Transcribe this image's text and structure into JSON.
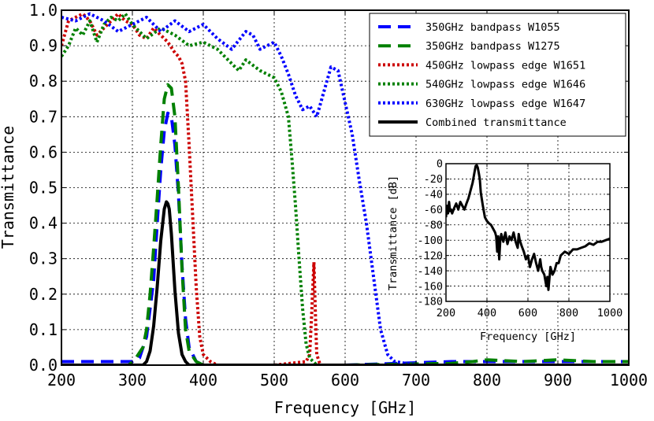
{
  "chart_data": [
    {
      "type": "line",
      "xlabel": "Frequency [GHz]",
      "ylabel": "Transmittance",
      "xlim": [
        200,
        1000
      ],
      "ylim": [
        0,
        1.0
      ],
      "grid": true,
      "legend_position": "top-right",
      "xticks": [
        "200",
        "300",
        "400",
        "500",
        "600",
        "700",
        "800",
        "900",
        "1000"
      ],
      "yticks": [
        "0.0",
        "0.1",
        "0.2",
        "0.3",
        "0.4",
        "0.5",
        "0.6",
        "0.7",
        "0.8",
        "0.9",
        "1.0"
      ],
      "series": [
        {
          "name": "350GHz bandpass W1055",
          "color": "#0000ff",
          "style": "dashed",
          "x": [
            200,
            250,
            300,
            310,
            320,
            330,
            335,
            340,
            345,
            350,
            355,
            360,
            365,
            370,
            375,
            380,
            390,
            400,
            600,
            750,
            800,
            1000
          ],
          "y": [
            0.01,
            0.01,
            0.01,
            0.02,
            0.08,
            0.24,
            0.4,
            0.55,
            0.66,
            0.71,
            0.7,
            0.62,
            0.48,
            0.28,
            0.13,
            0.05,
            0.01,
            0.0,
            0.0,
            0.01,
            0.01,
            0.01
          ]
        },
        {
          "name": "350GHz bandpass W1275",
          "color": "#008000",
          "style": "dashed",
          "x": [
            200,
            250,
            295,
            305,
            315,
            320,
            325,
            330,
            335,
            340,
            345,
            350,
            355,
            360,
            365,
            370,
            375,
            380,
            390,
            400,
            600,
            750,
            780,
            800,
            850,
            900,
            950,
            1000
          ],
          "y": [
            0.0,
            0.0,
            0.0,
            0.02,
            0.05,
            0.1,
            0.2,
            0.33,
            0.47,
            0.62,
            0.75,
            0.79,
            0.78,
            0.7,
            0.5,
            0.27,
            0.1,
            0.04,
            0.01,
            0.0,
            0.0,
            0.005,
            0.01,
            0.015,
            0.01,
            0.015,
            0.01,
            0.01
          ]
        },
        {
          "name": "450GHz lowpass edge W1651",
          "color": "#cc0000",
          "style": "dotted",
          "x": [
            200,
            210,
            220,
            230,
            240,
            250,
            260,
            270,
            280,
            290,
            300,
            310,
            320,
            330,
            340,
            350,
            360,
            365,
            370,
            375,
            380,
            385,
            390,
            395,
            400,
            410,
            420,
            450,
            500,
            545,
            550,
            553,
            556,
            558,
            560,
            565,
            600
          ],
          "y": [
            0.9,
            0.97,
            0.98,
            0.99,
            0.97,
            0.93,
            0.95,
            0.97,
            0.99,
            0.97,
            0.96,
            0.93,
            0.92,
            0.95,
            0.93,
            0.91,
            0.88,
            0.87,
            0.85,
            0.8,
            0.62,
            0.42,
            0.22,
            0.08,
            0.03,
            0.01,
            0.0,
            0.0,
            0.0,
            0.01,
            0.03,
            0.15,
            0.29,
            0.15,
            0.03,
            0.0,
            0.0
          ]
        },
        {
          "name": "540GHz lowpass edge W1646",
          "color": "#008000",
          "style": "dotted",
          "x": [
            200,
            210,
            220,
            230,
            240,
            250,
            260,
            270,
            280,
            290,
            300,
            320,
            340,
            360,
            380,
            400,
            420,
            440,
            450,
            460,
            480,
            500,
            510,
            520,
            525,
            530,
            535,
            540,
            545,
            550,
            555,
            560,
            600,
            700,
            800,
            1000
          ],
          "y": [
            0.87,
            0.9,
            0.95,
            0.93,
            0.97,
            0.91,
            0.96,
            0.98,
            0.97,
            0.99,
            0.96,
            0.92,
            0.95,
            0.93,
            0.9,
            0.91,
            0.89,
            0.85,
            0.83,
            0.86,
            0.83,
            0.81,
            0.77,
            0.7,
            0.58,
            0.45,
            0.3,
            0.16,
            0.06,
            0.02,
            0.01,
            0.0,
            0.0,
            0.0,
            0.0,
            0.0
          ]
        },
        {
          "name": "630GHz lowpass edge W1647",
          "color": "#0000ff",
          "style": "dotted",
          "x": [
            200,
            220,
            240,
            260,
            280,
            300,
            320,
            340,
            360,
            380,
            400,
            420,
            440,
            460,
            470,
            480,
            500,
            510,
            520,
            530,
            540,
            550,
            560,
            570,
            580,
            590,
            600,
            610,
            620,
            630,
            640,
            650,
            660,
            670,
            700,
            800,
            1000
          ],
          "y": [
            0.98,
            0.97,
            0.99,
            0.97,
            0.94,
            0.96,
            0.98,
            0.94,
            0.97,
            0.94,
            0.96,
            0.92,
            0.89,
            0.94,
            0.93,
            0.89,
            0.91,
            0.87,
            0.82,
            0.76,
            0.72,
            0.73,
            0.7,
            0.77,
            0.84,
            0.83,
            0.74,
            0.65,
            0.52,
            0.4,
            0.25,
            0.1,
            0.03,
            0.01,
            0.0,
            0.0,
            0.0
          ]
        },
        {
          "name": "Combined transmittance",
          "color": "#000000",
          "style": "solid",
          "x": [
            200,
            300,
            315,
            320,
            325,
            330,
            335,
            340,
            345,
            348,
            350,
            352,
            355,
            360,
            365,
            370,
            375,
            380,
            390,
            1000
          ],
          "y": [
            0.0,
            0.0,
            0.0,
            0.01,
            0.04,
            0.11,
            0.22,
            0.35,
            0.44,
            0.46,
            0.455,
            0.44,
            0.37,
            0.21,
            0.09,
            0.03,
            0.01,
            0.0,
            0.0,
            0.0
          ]
        }
      ]
    },
    {
      "type": "line",
      "position": "inset",
      "xlabel": "Frequency [GHz]",
      "ylabel": "Transmittance [dB]",
      "xlim": [
        200,
        1000
      ],
      "ylim": [
        -180,
        0
      ],
      "grid": true,
      "xticks": [
        "200",
        "400",
        "600",
        "800",
        "1000"
      ],
      "yticks": [
        "0",
        "-20",
        "-40",
        "-60",
        "-80",
        "-100",
        "-120",
        "-140",
        "-160",
        "-180"
      ],
      "series": [
        {
          "name": "Combined transmittance",
          "color": "#000000",
          "style": "solid",
          "x": [
            200,
            205,
            210,
            215,
            220,
            225,
            230,
            240,
            250,
            260,
            270,
            280,
            290,
            300,
            310,
            320,
            330,
            340,
            345,
            350,
            355,
            360,
            365,
            370,
            380,
            390,
            400,
            410,
            420,
            430,
            440,
            445,
            450,
            455,
            460,
            465,
            470,
            480,
            490,
            500,
            510,
            520,
            530,
            540,
            550,
            555,
            560,
            570,
            580,
            590,
            600,
            610,
            620,
            630,
            640,
            650,
            660,
            665,
            670,
            680,
            690,
            695,
            700,
            705,
            710,
            720,
            730,
            740,
            750,
            760,
            780,
            800,
            820,
            840,
            860,
            880,
            900,
            920,
            940,
            960,
            980,
            1000
          ],
          "y": [
            -70,
            -55,
            -65,
            -50,
            -62,
            -60,
            -65,
            -58,
            -52,
            -60,
            -50,
            -55,
            -60,
            -52,
            -45,
            -35,
            -25,
            -10,
            -3,
            -2,
            -5,
            -12,
            -20,
            -38,
            -55,
            -70,
            -75,
            -78,
            -80,
            -85,
            -90,
            -95,
            -115,
            -95,
            -125,
            -100,
            -92,
            -102,
            -90,
            -105,
            -95,
            -100,
            -90,
            -102,
            -110,
            -92,
            -100,
            -108,
            -115,
            -125,
            -120,
            -135,
            -125,
            -118,
            -130,
            -140,
            -125,
            -135,
            -140,
            -145,
            -160,
            -148,
            -165,
            -150,
            -135,
            -145,
            -140,
            -130,
            -130,
            -120,
            -115,
            -118,
            -112,
            -112,
            -110,
            -108,
            -104,
            -106,
            -102,
            -102,
            -100,
            -98
          ]
        }
      ]
    }
  ]
}
